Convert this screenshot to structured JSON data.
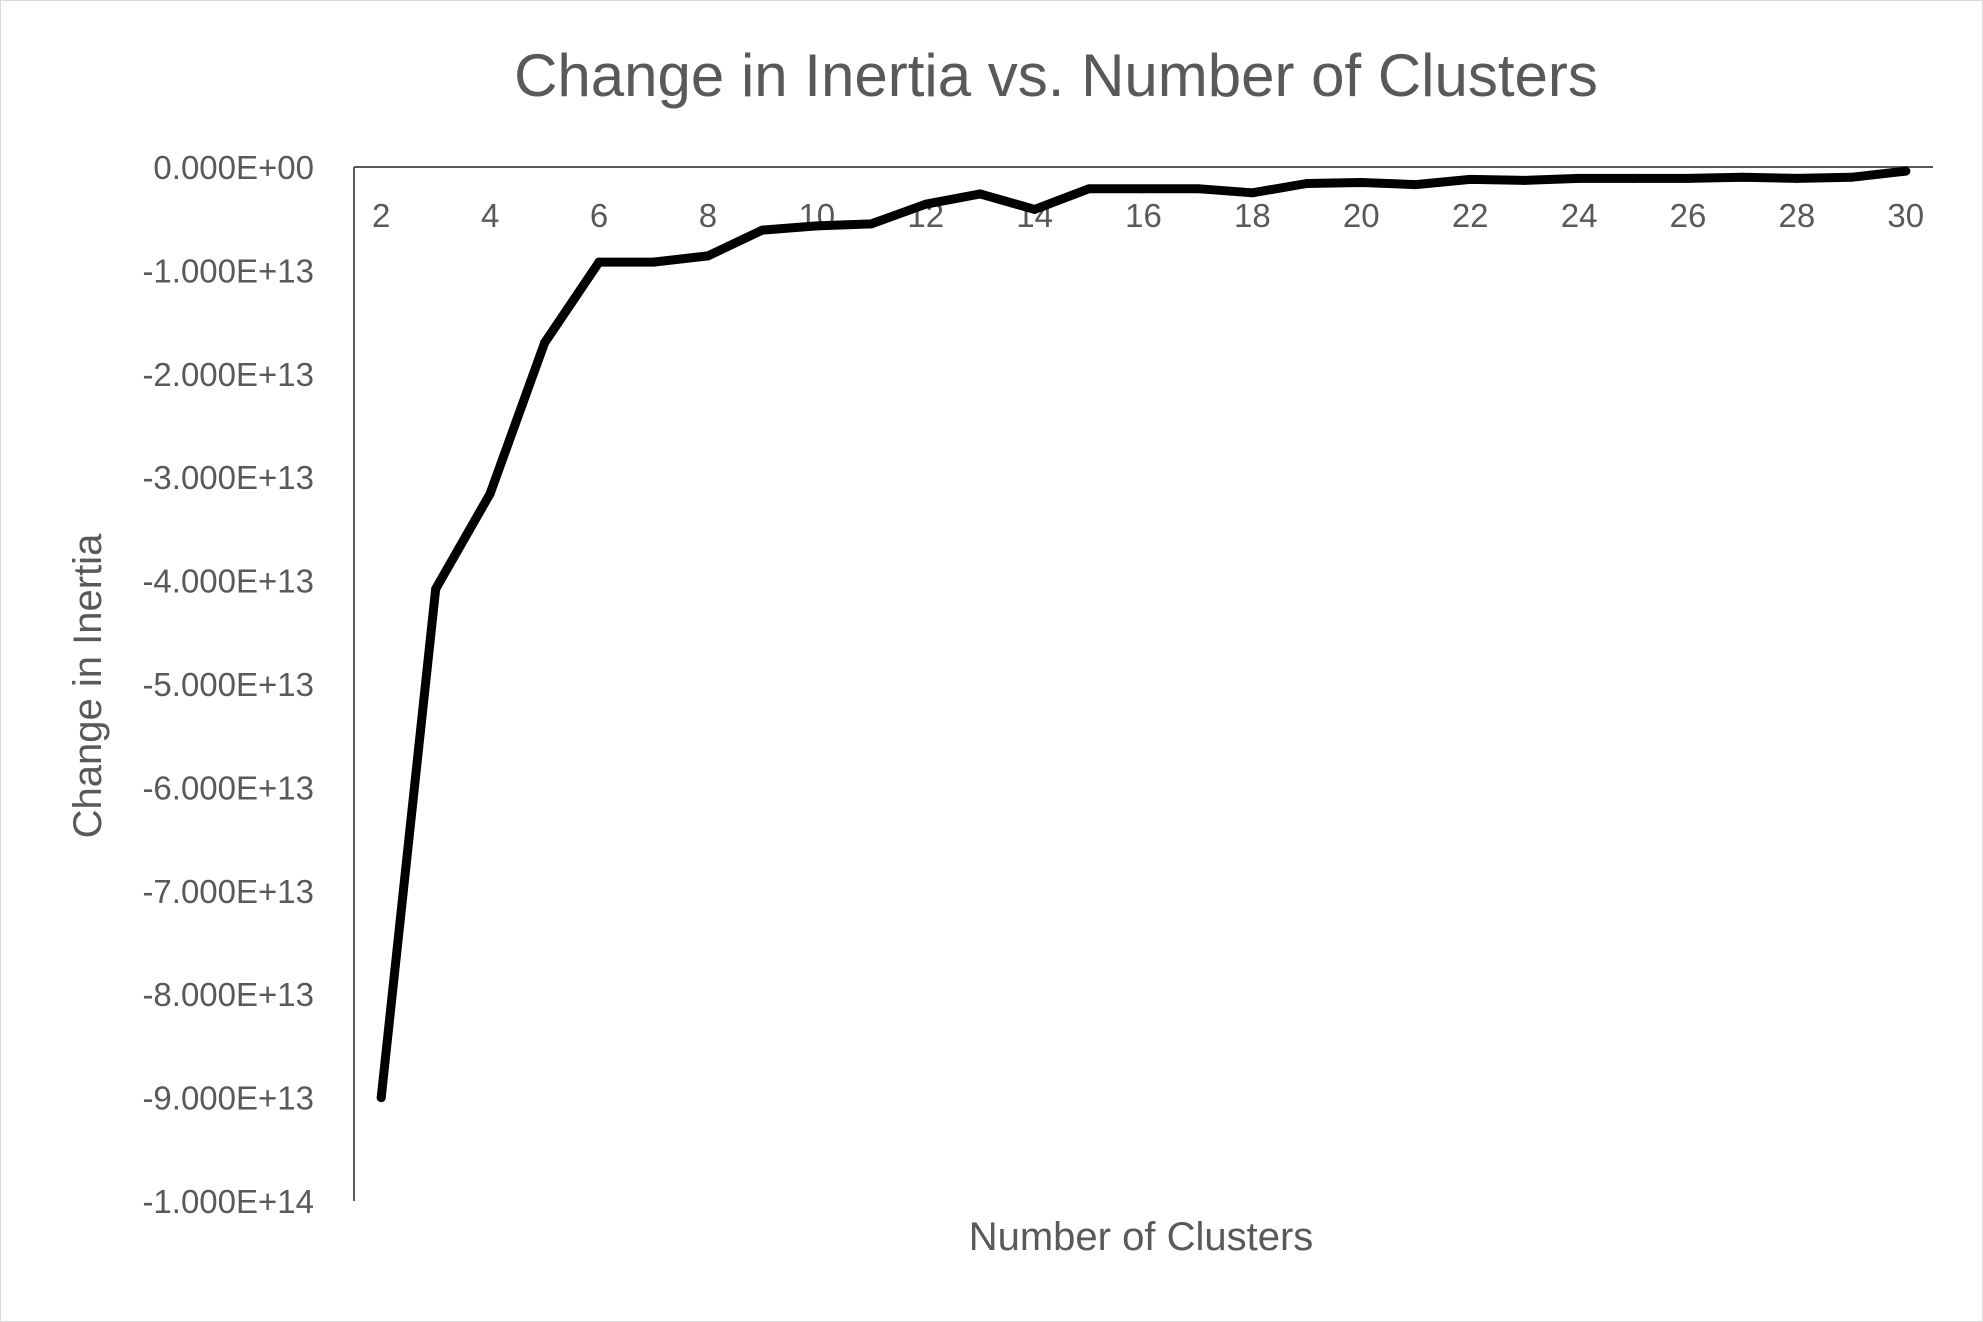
{
  "chart_data": {
    "type": "line",
    "title": "Change in Inertia vs. Number of Clusters",
    "xlabel": "Number of Clusters",
    "ylabel": "Change in Inertia",
    "x": [
      2,
      3,
      4,
      5,
      6,
      7,
      8,
      9,
      10,
      11,
      12,
      13,
      14,
      15,
      16,
      17,
      18,
      19,
      20,
      21,
      22,
      23,
      24,
      25,
      26,
      27,
      28,
      29,
      30
    ],
    "xticks": [
      2,
      4,
      6,
      8,
      10,
      12,
      14,
      16,
      18,
      20,
      22,
      24,
      26,
      28,
      30
    ],
    "xtick_labels": [
      "2",
      "4",
      "6",
      "8",
      "10",
      "12",
      "14",
      "16",
      "18",
      "20",
      "22",
      "24",
      "26",
      "28",
      "30"
    ],
    "ylim": [
      -100000000000000,
      0
    ],
    "yticks": [
      0,
      -10000000000000,
      -20000000000000,
      -30000000000000,
      -40000000000000,
      -50000000000000,
      -60000000000000,
      -70000000000000,
      -80000000000000,
      -90000000000000,
      -100000000000000
    ],
    "ytick_labels": [
      "0.000E+00",
      "-1.000E+13",
      "-2.000E+13",
      "-3.000E+13",
      "-4.000E+13",
      "-5.000E+13",
      "-6.000E+13",
      "-7.000E+13",
      "-8.000E+13",
      "-9.000E+13",
      "-1.000E+14"
    ],
    "series": [
      {
        "values": [
          -90000000000000,
          -40800000000000,
          -31600000000000,
          -17000000000000,
          -9200000000000,
          -9200000000000,
          -8600000000000,
          -6100000000000,
          -5700000000000,
          -5500000000000,
          -3600000000000,
          -2600000000000,
          -4100000000000,
          -2100000000000,
          -2100000000000,
          -2100000000000,
          -2500000000000,
          -1600000000000,
          -1500000000000,
          -1700000000000,
          -1200000000000,
          -1300000000000,
          -1100000000000,
          -1100000000000,
          -1100000000000,
          -1000000000000,
          -1100000000000,
          -1000000000000,
          -400000000000
        ],
        "color": "#000000"
      }
    ],
    "grid": false,
    "legend": "none",
    "axis_color": "#595959",
    "text_color": "#595959"
  }
}
